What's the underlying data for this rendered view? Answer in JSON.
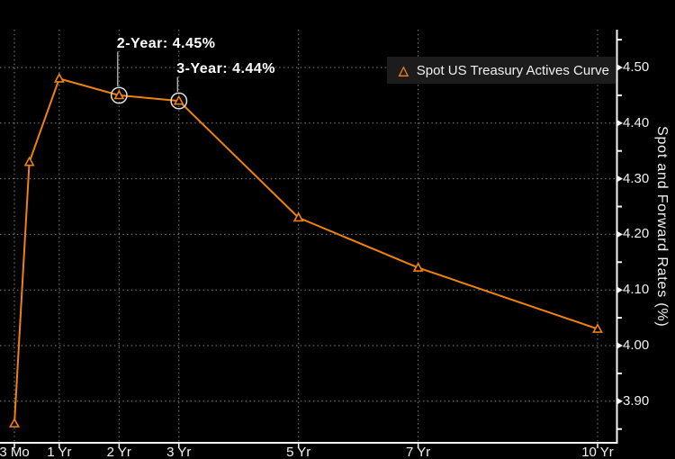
{
  "chart_data": {
    "type": "line",
    "title": "",
    "xlabel": "",
    "ylabel": "Spot and Forward Rates (%)",
    "grid": "dotted",
    "ylim": [
      3.83,
      4.57
    ],
    "series": [
      {
        "name": "Spot US Treasury Actives Curve",
        "marker": "open-triangle",
        "color": "#ef820d",
        "points": [
          {
            "label": "3 Mo",
            "years": 0.25,
            "value": 3.86
          },
          {
            "label": "6 Mo",
            "years": 0.5,
            "value": 4.33
          },
          {
            "label": "1 Yr",
            "years": 1,
            "value": 4.48
          },
          {
            "label": "2 Yr",
            "years": 2,
            "value": 4.45
          },
          {
            "label": "3 Yr",
            "years": 3,
            "value": 4.44
          },
          {
            "label": "5 Yr",
            "years": 5,
            "value": 4.23
          },
          {
            "label": "7 Yr",
            "years": 7,
            "value": 4.14
          },
          {
            "label": "10 Yr",
            "years": 10,
            "value": 4.03
          }
        ]
      }
    ],
    "x_ticks": [
      {
        "label": "3 Mo",
        "years": 0.25
      },
      {
        "label": "1 Yr",
        "years": 1
      },
      {
        "label": "2 Yr",
        "years": 2
      },
      {
        "label": "3 Yr",
        "years": 3
      },
      {
        "label": "5 Yr",
        "years": 5
      },
      {
        "label": "7 Yr",
        "years": 7
      },
      {
        "label": "10 Yr",
        "years": 10
      }
    ],
    "y_ticks": [
      "4.50",
      "4.40",
      "4.30",
      "4.20",
      "4.10",
      "4.00",
      "3.90"
    ],
    "y_minor_ticks": [
      4.55,
      4.45,
      4.35,
      4.25,
      4.15,
      4.05,
      3.95,
      3.85
    ],
    "legend": {
      "label": "Spot US Treasury Actives Curve",
      "position": "top-right",
      "marker_icon": "triangle-outline"
    },
    "annotations": [
      {
        "text": "2-Year: 4.45%",
        "point_label": "2 Yr",
        "years": 2,
        "value": 4.45
      },
      {
        "text": "3-Year: 4.44%",
        "point_label": "3 Yr",
        "years": 3,
        "value": 4.44
      }
    ],
    "colors": {
      "background": "#000000",
      "line": "#ef820d",
      "grid": "#848484",
      "axis": "#f5f5f5",
      "text": "#f2f2f2",
      "legend_background": "#1c1c1c",
      "annotation_text": "#ffffff",
      "annotation_circle": "#dedede"
    }
  }
}
